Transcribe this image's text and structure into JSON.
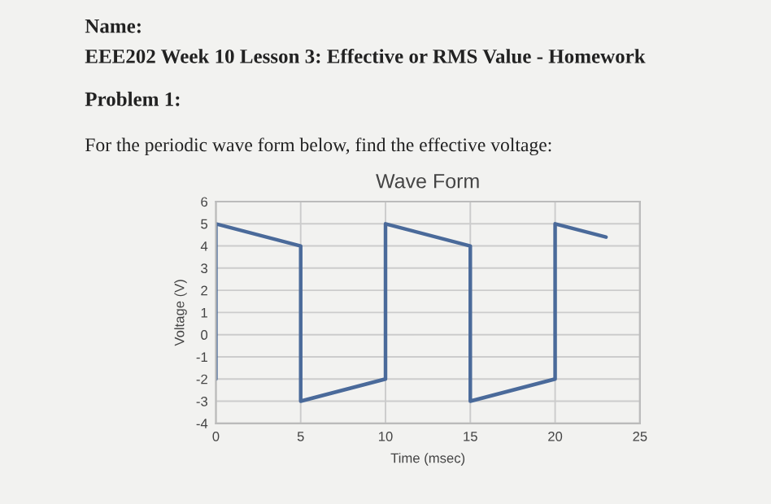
{
  "chart_data": {
    "type": "line",
    "title": "Wave Form",
    "xlabel": "Time (msec)",
    "ylabel": "Voltage (V)",
    "annotations": [
      "Name:",
      "EEE202 Week 10 Lesson 3: Effective or RMS Value - Homework",
      "Problem 1:",
      "For the periodic wave form below, find the effective voltage:"
    ],
    "series": [
      {
        "color": "#4a6a9a",
        "x": [
          0,
          0,
          5,
          5,
          10,
          10,
          15,
          15,
          20,
          20,
          23
        ],
        "values": [
          -2,
          5,
          4,
          -3,
          -2,
          5,
          4,
          -3,
          -2,
          5,
          4.4
        ]
      }
    ],
    "xlim": [
      0,
      25
    ],
    "xticks": [
      0,
      5,
      10,
      15,
      20,
      25
    ],
    "ylim": [
      -4,
      6
    ],
    "yticks": [
      -4,
      -3,
      -2,
      -1,
      0,
      1,
      2,
      3,
      4,
      5,
      6
    ],
    "grid": true,
    "marker": "none",
    "line_style": "solid"
  }
}
